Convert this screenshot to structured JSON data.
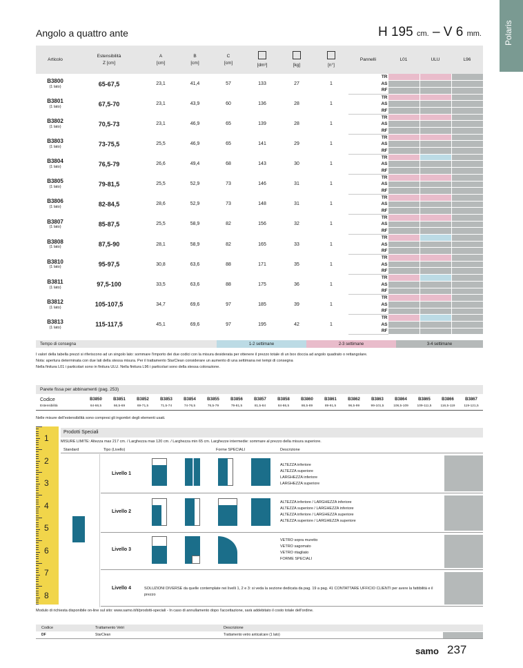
{
  "side_tab": "Polaris",
  "title": "Angolo a quattro ante",
  "spec": {
    "h": "H 195",
    "cm": "cm.",
    "dash": " – ",
    "v": "V 6",
    "mm": "mm."
  },
  "headers": {
    "articolo": "Articolo",
    "ext_1": "Estensibilità",
    "ext_2": "Z [cm]",
    "a_1": "A",
    "a_2": "[cm]",
    "b_1": "B",
    "b_2": "[cm]",
    "c_1": "C",
    "c_2": "[cm]",
    "vol": "[dm³]",
    "weight": "[kg]",
    "pieces": "[n°]",
    "pannelli": "Pannelli",
    "l01": "L01",
    "ulu": "ULU",
    "l96": "L96"
  },
  "products": [
    {
      "code": "B3800",
      "note": "(1 lato)",
      "ext": "65-67,5",
      "a": "23,1",
      "b": "41,4",
      "c": "57",
      "vol": "133",
      "kg": "27",
      "n": "1",
      "blue": false
    },
    {
      "code": "B3801",
      "note": "(1 lato)",
      "ext": "67,5-70",
      "a": "23,1",
      "b": "43,9",
      "c": "60",
      "vol": "136",
      "kg": "28",
      "n": "1",
      "blue": false
    },
    {
      "code": "B3802",
      "note": "(1 lato)",
      "ext": "70,5-73",
      "a": "23,1",
      "b": "46,9",
      "c": "65",
      "vol": "139",
      "kg": "28",
      "n": "1",
      "blue": false
    },
    {
      "code": "B3803",
      "note": "(1 lato)",
      "ext": "73-75,5",
      "a": "25,5",
      "b": "46,9",
      "c": "65",
      "vol": "141",
      "kg": "29",
      "n": "1",
      "blue": false
    },
    {
      "code": "B3804",
      "note": "(1 lato)",
      "ext": "76,5-79",
      "a": "26,6",
      "b": "49,4",
      "c": "68",
      "vol": "143",
      "kg": "30",
      "n": "1",
      "blue": true
    },
    {
      "code": "B3805",
      "note": "(1 lato)",
      "ext": "79-81,5",
      "a": "25,5",
      "b": "52,9",
      "c": "73",
      "vol": "146",
      "kg": "31",
      "n": "1",
      "blue": false
    },
    {
      "code": "B3806",
      "note": "(1 lato)",
      "ext": "82-84,5",
      "a": "28,6",
      "b": "52,9",
      "c": "73",
      "vol": "148",
      "kg": "31",
      "n": "1",
      "blue": false
    },
    {
      "code": "B3807",
      "note": "(1 lato)",
      "ext": "85-87,5",
      "a": "25,5",
      "b": "58,9",
      "c": "82",
      "vol": "156",
      "kg": "32",
      "n": "1",
      "blue": false
    },
    {
      "code": "B3808",
      "note": "(1 lato)",
      "ext": "87,5-90",
      "a": "28,1",
      "b": "58,9",
      "c": "82",
      "vol": "165",
      "kg": "33",
      "n": "1",
      "blue": true
    },
    {
      "code": "B3810",
      "note": "(1 lato)",
      "ext": "95-97,5",
      "a": "30,8",
      "b": "63,6",
      "c": "88",
      "vol": "171",
      "kg": "35",
      "n": "1",
      "blue": false
    },
    {
      "code": "B3811",
      "note": "(1 lato)",
      "ext": "97,5-100",
      "a": "33,5",
      "b": "63,6",
      "c": "88",
      "vol": "175",
      "kg": "36",
      "n": "1",
      "blue": true
    },
    {
      "code": "B3812",
      "note": "(1 lato)",
      "ext": "105-107,5",
      "a": "34,7",
      "b": "69,6",
      "c": "97",
      "vol": "185",
      "kg": "39",
      "n": "1",
      "blue": false
    },
    {
      "code": "B3813",
      "note": "(1 lato)",
      "ext": "115-117,5",
      "a": "45,1",
      "b": "69,6",
      "c": "97",
      "vol": "195",
      "kg": "42",
      "n": "1",
      "blue": true
    }
  ],
  "finishes": [
    "TR",
    "AS",
    "RF"
  ],
  "colors": {
    "pink": "#e9bccb",
    "blue": "#bcdbe5",
    "grey": "#b5b9b9",
    "teal": "#1b6e8a",
    "tab": "#7a9a92"
  },
  "delivery": {
    "label": "Tempo di consegna",
    "w12": "1-2 settimane",
    "w23": "2-3 settimane",
    "w34": "3-4 settimane"
  },
  "notes": [
    "I valori della tabella prezzi si riferiscono ad un singolo lato: sommare l'importo dei due codici con la misura desiderata per ottenere il prezzo totale di un box doccia ad angolo quadrato o rettangolare.",
    "Nota: apertura determinata con due lati della stessa misura. Per il trattamento StarClean considerare un aumento di una settimana nei tempi di consegna",
    "Nella finitura L01 i particolari sono in finitura ULU. Nella finitura L96 i particolari sono della stessa colorazione."
  ],
  "fixed": {
    "title": "Parete fissa per abbinamenti (pag. 253)",
    "label_code": "Codice",
    "label_ext": "Estensibilità",
    "items": [
      {
        "code": "B3850",
        "ext": "64-66,5"
      },
      {
        "code": "B3851",
        "ext": "66,5-69"
      },
      {
        "code": "B3852",
        "ext": "69-71,5"
      },
      {
        "code": "B3853",
        "ext": "71,5-74"
      },
      {
        "code": "B3854",
        "ext": "74-76,5"
      },
      {
        "code": "B3855",
        "ext": "76,5-79"
      },
      {
        "code": "B3856",
        "ext": "79-81,5"
      },
      {
        "code": "B3857",
        "ext": "81,5-84"
      },
      {
        "code": "B3858",
        "ext": "84-86,5"
      },
      {
        "code": "B3860",
        "ext": "86,5-89"
      },
      {
        "code": "B3861",
        "ext": "89-91,5"
      },
      {
        "code": "B3862",
        "ext": "96,5-99"
      },
      {
        "code": "B3863",
        "ext": "99-101,5"
      },
      {
        "code": "B3864",
        "ext": "106,5-109"
      },
      {
        "code": "B3865",
        "ext": "109-111,5"
      },
      {
        "code": "B3866",
        "ext": "116,5-119"
      },
      {
        "code": "B3867",
        "ext": "119-121,5"
      }
    ],
    "note": "Nelle misure dell'estensibilità sono compresi gli ingombri degli elementi usati."
  },
  "ruler": [
    "1",
    "2",
    "3",
    "4",
    "5",
    "6",
    "7",
    "8"
  ],
  "special": {
    "title": "Prodotti Speciali",
    "limits": "MISURE LIMITE: Altezza max 217 cm. / Larghezza max 120 cm. / Larghezza min 65 cm.     Larghezze intermedie: sommare al prezzo della misura superiore.",
    "col_standard": "Standard",
    "col_tipo": "Tipo (Livello)",
    "col_forme": "Forme SPECIALI",
    "col_desc": "Descrizione",
    "levels": [
      {
        "name": "Livello 1",
        "desc": [
          "ALTEZZA inferiore",
          "ALTEZZA superiore",
          "LARGHEZZA inferiore",
          "LARGHEZZA superiore"
        ]
      },
      {
        "name": "Livello 2",
        "desc": [
          "ALTEZZA inferiore / LARGHEZZA inferiore",
          "ALTEZZA superiore / LARGHEZZA inferiore",
          "ALTEZZA inferiore / LARGHEZZA superiore",
          "ALTEZZA superiore / LARGHEZZA superiore"
        ]
      },
      {
        "name": "Livello 3",
        "desc": [
          "VETRO sopra muretto",
          "VETRO sagomato",
          "VETRO ritagliato",
          "FORME SPECIALI"
        ]
      },
      {
        "name": "Livello 4",
        "desc": [
          "SOLUZIONI DIVERSE da quelle contemplate nei livelli 1, 2 e 3: si veda la sezione dedicata da pag. 19 a pag. 41 CONTATTARE UFFICIO CLIENTI per avere la fattibilità e il prezzo"
        ]
      }
    ]
  },
  "module_note": "Modulo di richiesta disponibile on-line sul sito: www.samo.it/it/prodotti-speciali - In caso di annullamento dopo l'accettazione, sarà addebitato il costo totale dell'ordine.",
  "treatment": {
    "h_code": "Codice",
    "h_treat": "Trattamento Vetri",
    "h_desc": "Descrizione",
    "code": "DF",
    "treat": "StarClean",
    "desc": "Trattamento vetro anticalcare (1 lato)"
  },
  "brand": "samo",
  "page_number": "237"
}
